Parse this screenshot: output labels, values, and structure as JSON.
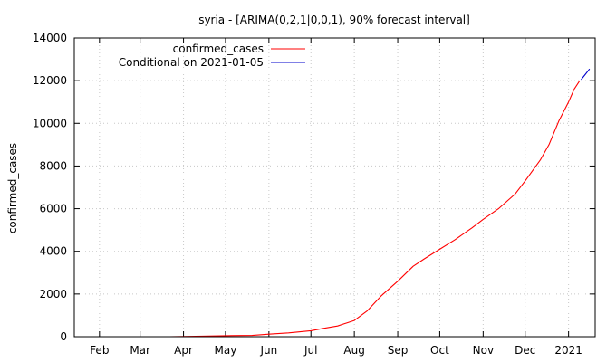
{
  "chart_data": {
    "type": "line",
    "title": "syria -  [ARIMA(0,2,1|0,0,1), 90% forecast interval]",
    "xlabel": "",
    "ylabel": "confirmed_cases",
    "ylim": [
      0,
      14000
    ],
    "xlim": [
      "2020-01-14",
      "2021-01-20"
    ],
    "y_ticks": [
      0,
      2000,
      4000,
      6000,
      8000,
      10000,
      12000,
      14000
    ],
    "x_ticks": [
      {
        "date": "2020-02-01",
        "label": "Feb"
      },
      {
        "date": "2020-03-01",
        "label": "Mar"
      },
      {
        "date": "2020-04-01",
        "label": "Apr"
      },
      {
        "date": "2020-05-01",
        "label": "May"
      },
      {
        "date": "2020-06-01",
        "label": "Jun"
      },
      {
        "date": "2020-07-01",
        "label": "Jul"
      },
      {
        "date": "2020-08-01",
        "label": "Aug"
      },
      {
        "date": "2020-09-01",
        "label": "Sep"
      },
      {
        "date": "2020-10-01",
        "label": "Oct"
      },
      {
        "date": "2020-11-01",
        "label": "Nov"
      },
      {
        "date": "2020-12-01",
        "label": "Dec"
      },
      {
        "date": "2021-01-01",
        "label": "2021"
      }
    ],
    "grid": true,
    "legend_position": "top-left",
    "series": [
      {
        "name": "confirmed_cases",
        "color": "#ff0000",
        "points": [
          [
            "2020-03-22",
            1
          ],
          [
            "2020-04-10",
            20
          ],
          [
            "2020-05-01",
            45
          ],
          [
            "2020-05-20",
            60
          ],
          [
            "2020-06-01",
            120
          ],
          [
            "2020-06-15",
            180
          ],
          [
            "2020-07-01",
            280
          ],
          [
            "2020-07-10",
            390
          ],
          [
            "2020-07-20",
            500
          ],
          [
            "2020-08-01",
            760
          ],
          [
            "2020-08-10",
            1200
          ],
          [
            "2020-08-20",
            1900
          ],
          [
            "2020-09-01",
            2600
          ],
          [
            "2020-09-12",
            3300
          ],
          [
            "2020-09-20",
            3650
          ],
          [
            "2020-10-01",
            4100
          ],
          [
            "2020-10-12",
            4550
          ],
          [
            "2020-10-24",
            5100
          ],
          [
            "2020-11-01",
            5500
          ],
          [
            "2020-11-12",
            6000
          ],
          [
            "2020-11-24",
            6700
          ],
          [
            "2020-12-01",
            7300
          ],
          [
            "2020-12-12",
            8300
          ],
          [
            "2020-12-18",
            9000
          ],
          [
            "2020-12-25",
            10100
          ],
          [
            "2021-01-01",
            11000
          ],
          [
            "2021-01-05",
            11600
          ],
          [
            "2021-01-09",
            12000
          ]
        ]
      },
      {
        "name": "Conditional on 2021-01-05",
        "color": "#0000cc",
        "points": [
          [
            "2021-01-10",
            12050
          ],
          [
            "2021-01-13",
            12300
          ],
          [
            "2021-01-16",
            12550
          ]
        ]
      }
    ]
  }
}
